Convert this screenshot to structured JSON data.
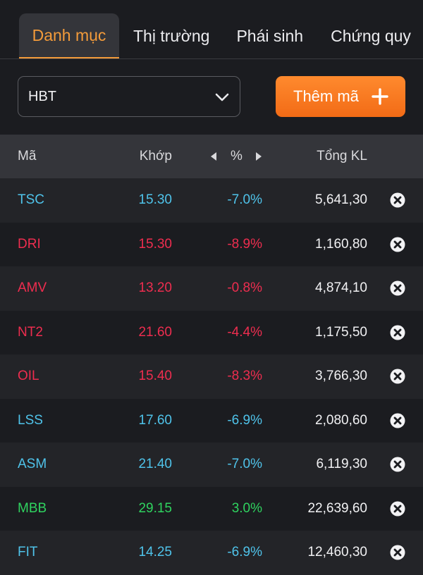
{
  "tabs": [
    {
      "label": "Danh mục",
      "active": true
    },
    {
      "label": "Thị trường",
      "active": false
    },
    {
      "label": "Phái sinh",
      "active": false
    },
    {
      "label": "Chứng quy",
      "active": false
    }
  ],
  "watchlist_select": {
    "value": "HBT",
    "icon": "chevron-down-icon"
  },
  "add_button": {
    "label": "Thêm mã",
    "icon": "plus-icon"
  },
  "table": {
    "headers": {
      "symbol": "Mã",
      "match": "Khớp",
      "pct": "%",
      "volume": "Tổng KL"
    },
    "rows": [
      {
        "symbol": "TSC",
        "price": "15.30",
        "change": "-7.0%",
        "volume": "5,641,30",
        "color": "#4fc3ea"
      },
      {
        "symbol": "DRI",
        "price": "15.30",
        "change": "-8.9%",
        "volume": "1,160,80",
        "color": "#ee2d4f"
      },
      {
        "symbol": "AMV",
        "price": "13.20",
        "change": "-0.8%",
        "volume": "4,874,10",
        "color": "#ee2d4f"
      },
      {
        "symbol": "NT2",
        "price": "21.60",
        "change": "-4.4%",
        "volume": "1,175,50",
        "color": "#ee2d4f"
      },
      {
        "symbol": "OIL",
        "price": "15.40",
        "change": "-8.3%",
        "volume": "3,766,30",
        "color": "#ee2d4f"
      },
      {
        "symbol": "LSS",
        "price": "17.60",
        "change": "-6.9%",
        "volume": "2,080,60",
        "color": "#4fc3ea"
      },
      {
        "symbol": "ASM",
        "price": "21.40",
        "change": "-7.0%",
        "volume": "6,119,30",
        "color": "#4fc3ea"
      },
      {
        "symbol": "MBB",
        "price": "29.15",
        "change": "3.0%",
        "volume": "22,639,60",
        "color": "#2fd35f"
      },
      {
        "symbol": "FIT",
        "price": "14.25",
        "change": "-6.9%",
        "volume": "12,460,30",
        "color": "#4fc3ea"
      }
    ]
  },
  "colors": {
    "accent": "#f39b3a",
    "button": "#f57a1f"
  }
}
